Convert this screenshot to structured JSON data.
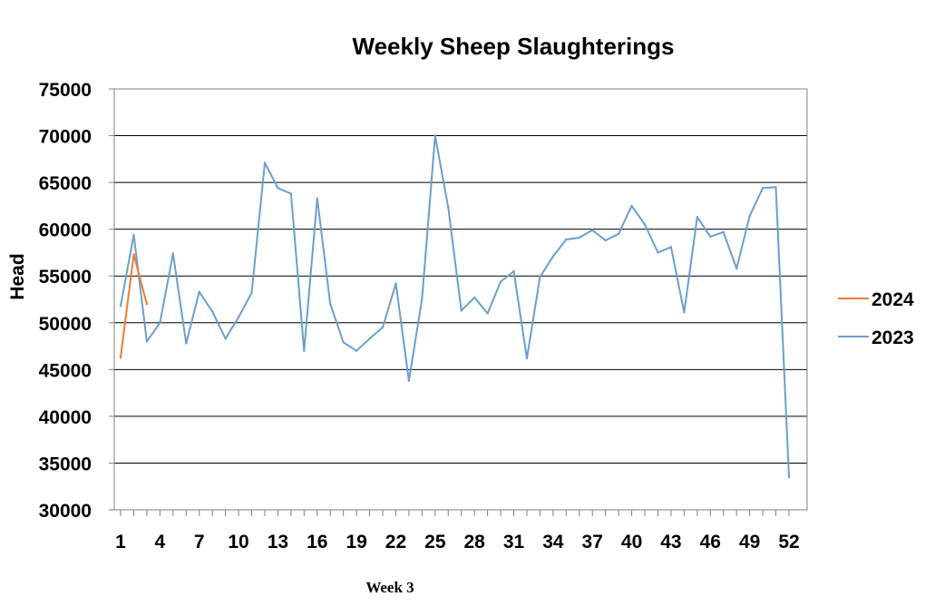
{
  "chart_data": {
    "type": "line",
    "title": "Weekly Sheep Slaughterings",
    "ylabel": "Head",
    "xlabel": "",
    "note": "Week 3",
    "ylim": [
      30000,
      75000
    ],
    "yticks": [
      30000,
      35000,
      40000,
      45000,
      50000,
      55000,
      60000,
      65000,
      70000,
      75000
    ],
    "xlim": [
      1,
      52
    ],
    "xticks": [
      1,
      4,
      7,
      10,
      13,
      16,
      19,
      22,
      25,
      28,
      31,
      34,
      37,
      40,
      43,
      46,
      49,
      52
    ],
    "grid": true,
    "legend_position": "right",
    "series": [
      {
        "name": "2024",
        "color": "#ED7D31",
        "x": [
          1,
          2,
          3
        ],
        "values": [
          46300,
          57300,
          52000
        ]
      },
      {
        "name": "2023",
        "color": "#6A9FCF",
        "x": [
          1,
          2,
          3,
          4,
          5,
          6,
          7,
          8,
          9,
          10,
          11,
          12,
          13,
          14,
          15,
          16,
          17,
          18,
          19,
          20,
          21,
          22,
          23,
          24,
          25,
          26,
          27,
          28,
          29,
          30,
          31,
          32,
          33,
          34,
          35,
          36,
          37,
          38,
          39,
          40,
          41,
          42,
          43,
          44,
          45,
          46,
          47,
          48,
          49,
          50,
          51,
          52
        ],
        "values": [
          51800,
          59400,
          48000,
          50000,
          57400,
          47800,
          53300,
          51200,
          48300,
          50600,
          53200,
          67100,
          64400,
          63800,
          47000,
          63300,
          52000,
          47900,
          47000,
          48300,
          49500,
          54200,
          43800,
          52600,
          70000,
          62300,
          51300,
          52700,
          51000,
          54400,
          55500,
          46200,
          54900,
          57100,
          58900,
          59100,
          59900,
          58800,
          59500,
          62500,
          60500,
          57500,
          58100,
          51100,
          61300,
          59200,
          59700,
          55800,
          61400,
          64400,
          64500,
          33500
        ]
      }
    ],
    "legend": [
      "2024",
      "2023"
    ]
  }
}
